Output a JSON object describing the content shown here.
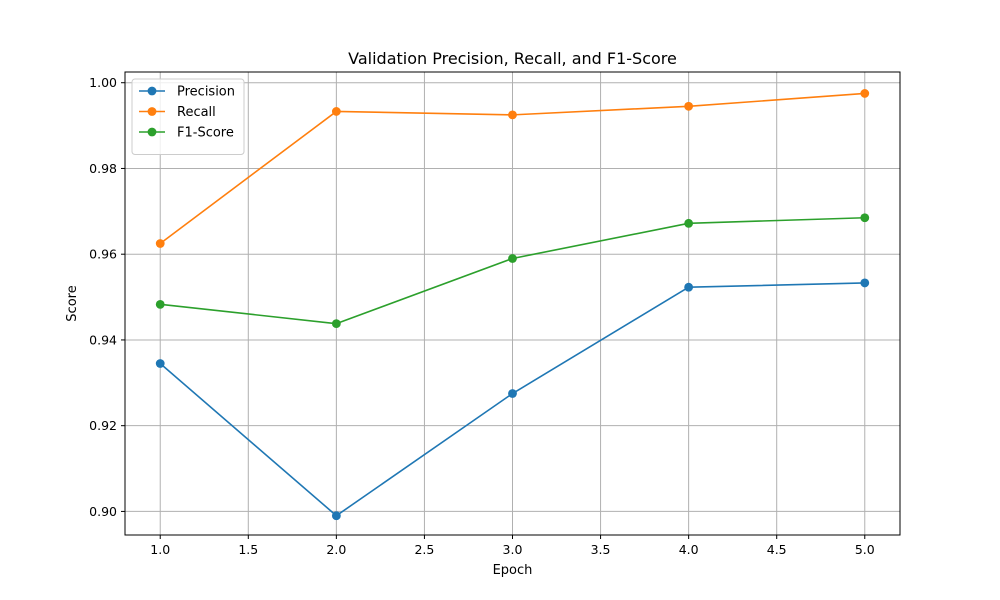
{
  "chart_data": {
    "type": "line",
    "title": "Validation Precision, Recall, and F1-Score",
    "xlabel": "Epoch",
    "ylabel": "Score",
    "x": [
      1,
      2,
      3,
      4,
      5
    ],
    "xlim": [
      0.8,
      5.2
    ],
    "ylim": [
      0.8945,
      1.0025
    ],
    "xticks": [
      1.0,
      1.5,
      2.0,
      2.5,
      3.0,
      3.5,
      4.0,
      4.5,
      5.0
    ],
    "xtick_labels": [
      "1.0",
      "1.5",
      "2.0",
      "2.5",
      "3.0",
      "3.5",
      "4.0",
      "4.5",
      "5.0"
    ],
    "yticks": [
      0.9,
      0.92,
      0.94,
      0.96,
      0.98,
      1.0
    ],
    "ytick_labels": [
      "0.90",
      "0.92",
      "0.94",
      "0.96",
      "0.98",
      "1.00"
    ],
    "grid": true,
    "legend_position": "top-left",
    "series": [
      {
        "name": "Precision",
        "color": "#1f77b4",
        "marker": "circle",
        "values": [
          0.9345,
          0.899,
          0.9275,
          0.9523,
          0.9533
        ]
      },
      {
        "name": "Recall",
        "color": "#ff7f0e",
        "marker": "circle",
        "values": [
          0.9625,
          0.9933,
          0.9925,
          0.9945,
          0.9975
        ]
      },
      {
        "name": "F1-Score",
        "color": "#2ca02c",
        "marker": "circle",
        "values": [
          0.9483,
          0.9438,
          0.959,
          0.9672,
          0.9685
        ]
      }
    ]
  }
}
